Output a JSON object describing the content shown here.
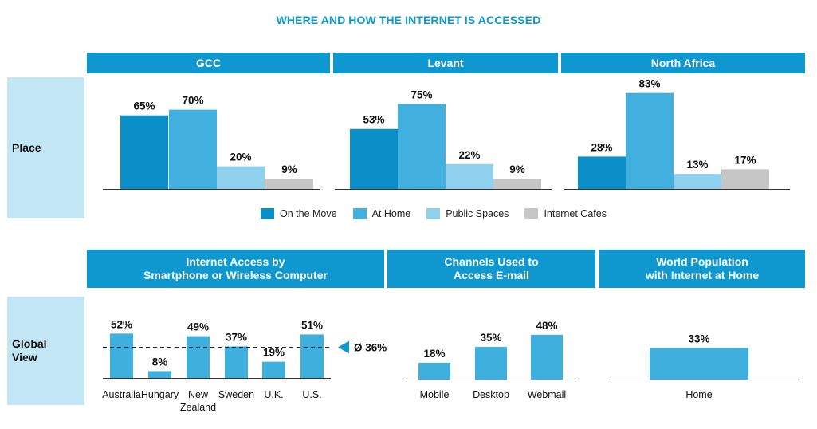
{
  "title": "WHERE AND HOW THE INTERNET IS ACCESSED",
  "row_labels": {
    "place": "Place",
    "global_view": [
      "Global",
      "View"
    ]
  },
  "colors": {
    "header": "#0f98cf",
    "row_label_bg": "#c3e6f4",
    "On the Move": "#0b8fc8",
    "At Home": "#42b0df",
    "Public Spaces": "#8fd0ee",
    "Internet Cafes": "#c6c6c6",
    "single": "#3fb0de",
    "avg_marker": "#1199cc"
  },
  "legend": [
    "On the Move",
    "At Home",
    "Public Spaces",
    "Internet Cafes"
  ],
  "headers": {
    "gcc": "GCC",
    "levant": "Levant",
    "north_africa": "North Africa",
    "smartphone": [
      "Internet Access by",
      "Smartphone or Wireless Computer"
    ],
    "email": [
      "Channels Used to",
      "Access E-mail"
    ],
    "world": [
      "World Population",
      "with Internet at Home"
    ]
  },
  "chart_data": [
    {
      "type": "bar",
      "title": "GCC",
      "categories": [
        "On the Move",
        "At Home",
        "Public Spaces",
        "Internet Cafes"
      ],
      "values": [
        65,
        70,
        20,
        9
      ],
      "labels": [
        "65%",
        "70%",
        "20%",
        "9%"
      ],
      "ylim": [
        0,
        100
      ]
    },
    {
      "type": "bar",
      "title": "Levant",
      "categories": [
        "On the Move",
        "At Home",
        "Public Spaces",
        "Internet Cafes"
      ],
      "values": [
        53,
        75,
        22,
        9
      ],
      "labels": [
        "53%",
        "75%",
        "22%",
        "9%"
      ],
      "ylim": [
        0,
        100
      ]
    },
    {
      "type": "bar",
      "title": "North Africa",
      "categories": [
        "On the Move",
        "At Home",
        "Public Spaces",
        "Internet Cafes"
      ],
      "values": [
        28,
        83,
        13,
        17
      ],
      "labels": [
        "28%",
        "83%",
        "13%",
        "17%"
      ],
      "ylim": [
        0,
        100
      ]
    },
    {
      "type": "bar",
      "title": "Internet Access by Smartphone or Wireless Computer",
      "categories": [
        "Australia",
        "Hungary",
        "New Zealand",
        "Sweden",
        "U.K.",
        "U.S."
      ],
      "category_lines": [
        [
          "Australia"
        ],
        [
          "Hungary"
        ],
        [
          "New",
          "Zealand"
        ],
        [
          "Sweden"
        ],
        [
          "U.K."
        ],
        [
          "U.S."
        ]
      ],
      "values": [
        52,
        8,
        49,
        37,
        19,
        51
      ],
      "labels": [
        "52%",
        "8%",
        "49%",
        "37%",
        "19%",
        "51%"
      ],
      "average": 36,
      "average_label": "Ø 36%",
      "ylim": [
        0,
        100
      ]
    },
    {
      "type": "bar",
      "title": "Channels Used to Access E-mail",
      "categories": [
        "Mobile",
        "Desktop",
        "Webmail"
      ],
      "values": [
        18,
        35,
        48
      ],
      "labels": [
        "18%",
        "35%",
        "48%"
      ],
      "ylim": [
        0,
        100
      ]
    },
    {
      "type": "bar",
      "title": "World Population with Internet at Home",
      "categories": [
        "Home"
      ],
      "values": [
        33
      ],
      "labels": [
        "33%"
      ],
      "ylim": [
        0,
        100
      ]
    }
  ]
}
